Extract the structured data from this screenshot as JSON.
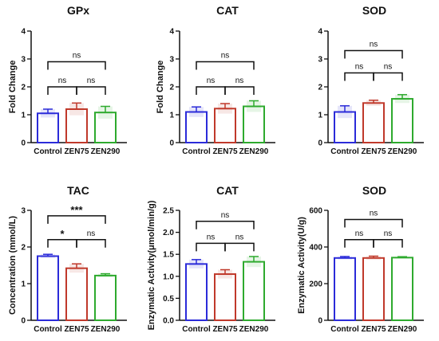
{
  "colors": {
    "Control": "#2b2bd9",
    "ZEN75": "#c0392b",
    "ZEN290": "#2eaa2e"
  },
  "chart_data": [
    {
      "type": "bar",
      "title": "GPx",
      "ylabel": "Fold Change",
      "ylim": [
        0,
        4
      ],
      "yticks": [
        "0",
        "1",
        "2",
        "3",
        "4"
      ],
      "categories": [
        "Control",
        "ZEN75",
        "ZEN290"
      ],
      "values": [
        1.05,
        1.2,
        1.08
      ],
      "errors": [
        0.15,
        0.22,
        0.22
      ],
      "comparisons": [
        {
          "from": 0,
          "to": 1,
          "label": "ns",
          "level": 2.0
        },
        {
          "from": 1,
          "to": 2,
          "label": "ns",
          "level": 2.0
        },
        {
          "from": 0,
          "to": 2,
          "label": "ns",
          "level": 2.9
        }
      ]
    },
    {
      "type": "bar",
      "title": "CAT",
      "ylabel": "Fold Change",
      "ylim": [
        0,
        4
      ],
      "yticks": [
        "0",
        "1",
        "2",
        "3",
        "4"
      ],
      "categories": [
        "Control",
        "ZEN75",
        "ZEN290"
      ],
      "values": [
        1.1,
        1.22,
        1.3
      ],
      "errors": [
        0.18,
        0.18,
        0.2
      ],
      "comparisons": [
        {
          "from": 0,
          "to": 1,
          "label": "ns",
          "level": 2.0
        },
        {
          "from": 1,
          "to": 2,
          "label": "ns",
          "level": 2.0
        },
        {
          "from": 0,
          "to": 2,
          "label": "ns",
          "level": 2.9
        }
      ]
    },
    {
      "type": "bar",
      "title": "SOD",
      "ylabel": "",
      "ylim": [
        0,
        4
      ],
      "yticks": [
        "0",
        "1",
        "2",
        "3",
        "4"
      ],
      "categories": [
        "Control",
        "ZEN75",
        "ZEN290"
      ],
      "values": [
        1.1,
        1.42,
        1.57
      ],
      "errors": [
        0.22,
        0.1,
        0.15
      ],
      "comparisons": [
        {
          "from": 0,
          "to": 1,
          "label": "ns",
          "level": 2.5
        },
        {
          "from": 1,
          "to": 2,
          "label": "ns",
          "level": 2.5
        },
        {
          "from": 0,
          "to": 2,
          "label": "ns",
          "level": 3.3
        }
      ]
    },
    {
      "type": "bar",
      "title": "TAC",
      "ylabel": "Concentration (mmol/L)",
      "ylim": [
        0,
        3
      ],
      "yticks": [
        "0",
        "1",
        "2",
        "3"
      ],
      "categories": [
        "Control",
        "ZEN75",
        "ZEN290"
      ],
      "values": [
        1.75,
        1.42,
        1.22
      ],
      "errors": [
        0.05,
        0.12,
        0.05
      ],
      "comparisons": [
        {
          "from": 0,
          "to": 1,
          "label": "*",
          "level": 2.2,
          "color": "#c0392b"
        },
        {
          "from": 1,
          "to": 2,
          "label": "ns",
          "level": 2.2
        },
        {
          "from": 0,
          "to": 2,
          "label": "***",
          "level": 2.85,
          "color": "#c0392b"
        }
      ]
    },
    {
      "type": "bar",
      "title": "CAT",
      "ylabel": "Enzymatic Activity(μmol/min/g)",
      "ylim": [
        0,
        2.5
      ],
      "yticks": [
        "0.0",
        "0.5",
        "1.0",
        "1.5",
        "2.0",
        "2.5"
      ],
      "categories": [
        "Control",
        "ZEN75",
        "ZEN290"
      ],
      "values": [
        1.28,
        1.05,
        1.33
      ],
      "errors": [
        0.1,
        0.1,
        0.12
      ],
      "comparisons": [
        {
          "from": 0,
          "to": 1,
          "label": "ns",
          "level": 1.75
        },
        {
          "from": 1,
          "to": 2,
          "label": "ns",
          "level": 1.75
        },
        {
          "from": 0,
          "to": 2,
          "label": "ns",
          "level": 2.25
        }
      ]
    },
    {
      "type": "bar",
      "title": "SOD",
      "ylabel": "Enzymatic Activity(U/g)",
      "ylim": [
        0,
        600
      ],
      "yticks": [
        "0",
        "200",
        "400",
        "600"
      ],
      "categories": [
        "Control",
        "ZEN75",
        "ZEN290"
      ],
      "values": [
        340,
        340,
        342
      ],
      "errors": [
        8,
        10,
        5
      ],
      "comparisons": [
        {
          "from": 0,
          "to": 1,
          "label": "ns",
          "level": 440
        },
        {
          "from": 1,
          "to": 2,
          "label": "ns",
          "level": 440
        },
        {
          "from": 0,
          "to": 2,
          "label": "ns",
          "level": 550
        }
      ]
    }
  ]
}
